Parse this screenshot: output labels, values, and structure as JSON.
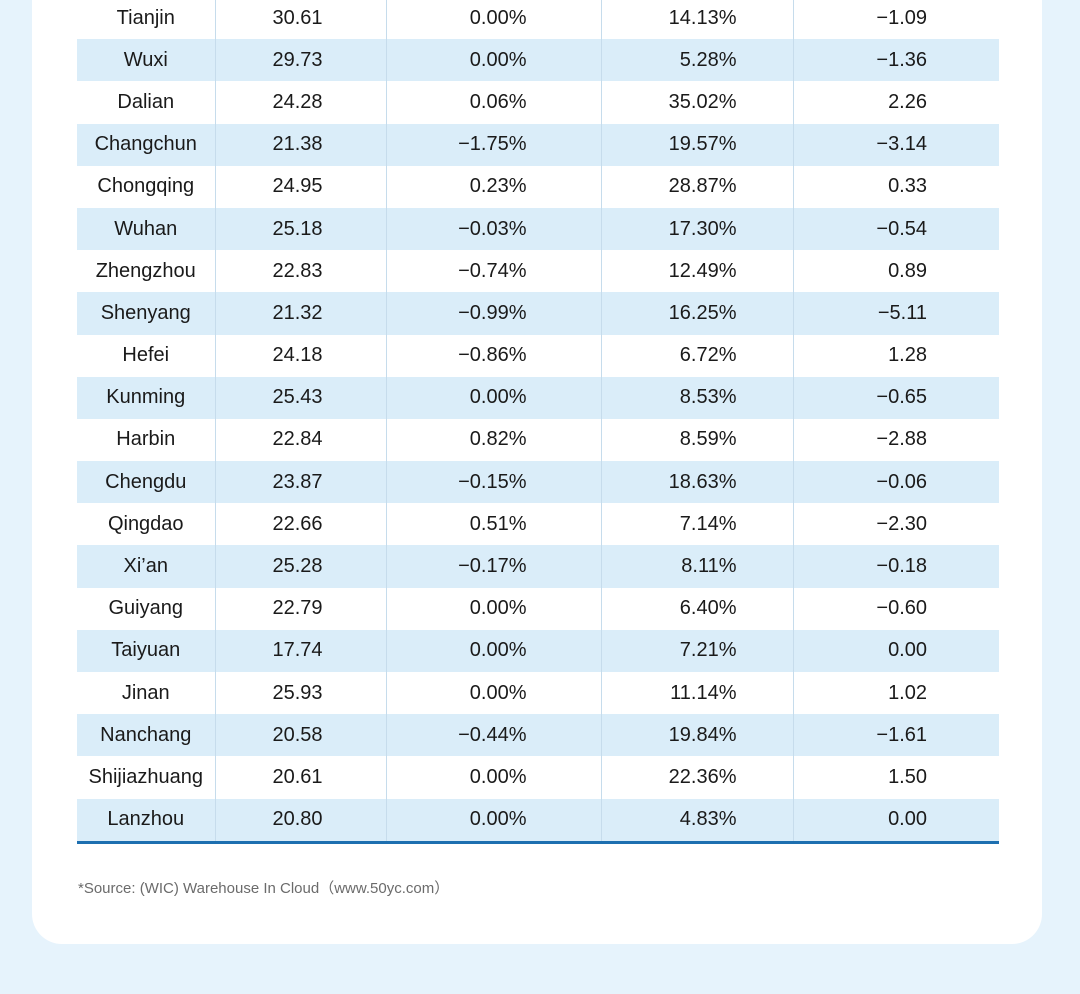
{
  "table": {
    "rows": [
      {
        "city": "Tianjin",
        "v1": "30.61",
        "v2": "0.00%",
        "v3": "14.13%",
        "v4": "−1.09"
      },
      {
        "city": "Wuxi",
        "v1": "29.73",
        "v2": "0.00%",
        "v3": "5.28%",
        "v4": "−1.36"
      },
      {
        "city": "Dalian",
        "v1": "24.28",
        "v2": "0.06%",
        "v3": "35.02%",
        "v4": "2.26"
      },
      {
        "city": "Changchun",
        "v1": "21.38",
        "v2": "−1.75%",
        "v3": "19.57%",
        "v4": "−3.14"
      },
      {
        "city": "Chongqing",
        "v1": "24.95",
        "v2": "0.23%",
        "v3": "28.87%",
        "v4": "0.33"
      },
      {
        "city": "Wuhan",
        "v1": "25.18",
        "v2": "−0.03%",
        "v3": "17.30%",
        "v4": "−0.54"
      },
      {
        "city": "Zhengzhou",
        "v1": "22.83",
        "v2": "−0.74%",
        "v3": "12.49%",
        "v4": "0.89"
      },
      {
        "city": "Shenyang",
        "v1": "21.32",
        "v2": "−0.99%",
        "v3": "16.25%",
        "v4": "−5.11"
      },
      {
        "city": "Hefei",
        "v1": "24.18",
        "v2": "−0.86%",
        "v3": "6.72%",
        "v4": "1.28"
      },
      {
        "city": "Kunming",
        "v1": "25.43",
        "v2": "0.00%",
        "v3": "8.53%",
        "v4": "−0.65"
      },
      {
        "city": "Harbin",
        "v1": "22.84",
        "v2": "0.82%",
        "v3": "8.59%",
        "v4": "−2.88"
      },
      {
        "city": "Chengdu",
        "v1": "23.87",
        "v2": "−0.15%",
        "v3": "18.63%",
        "v4": "−0.06"
      },
      {
        "city": "Qingdao",
        "v1": "22.66",
        "v2": "0.51%",
        "v3": "7.14%",
        "v4": "−2.30"
      },
      {
        "city": "Xi’an",
        "v1": "25.28",
        "v2": "−0.17%",
        "v3": "8.11%",
        "v4": "−0.18"
      },
      {
        "city": "Guiyang",
        "v1": "22.79",
        "v2": "0.00%",
        "v3": "6.40%",
        "v4": "−0.60"
      },
      {
        "city": "Taiyuan",
        "v1": "17.74",
        "v2": "0.00%",
        "v3": "7.21%",
        "v4": "0.00"
      },
      {
        "city": "Jinan",
        "v1": "25.93",
        "v2": "0.00%",
        "v3": "11.14%",
        "v4": "1.02"
      },
      {
        "city": "Nanchang",
        "v1": "20.58",
        "v2": "−0.44%",
        "v3": "19.84%",
        "v4": "−1.61"
      },
      {
        "city": "Shijiazhuang",
        "v1": "20.61",
        "v2": "0.00%",
        "v3": "22.36%",
        "v4": "1.50"
      },
      {
        "city": "Lanzhou",
        "v1": "20.80",
        "v2": "0.00%",
        "v3": "4.83%",
        "v4": "0.00"
      }
    ]
  },
  "footer": {
    "source": "*Source: (WIC) Warehouse In Cloud（www.50yc.com）"
  },
  "colors": {
    "page_background": "#e6f3fc",
    "card_background": "#ffffff",
    "row_shade": "#daedf9",
    "rule_blue": "#1d6fb0"
  }
}
